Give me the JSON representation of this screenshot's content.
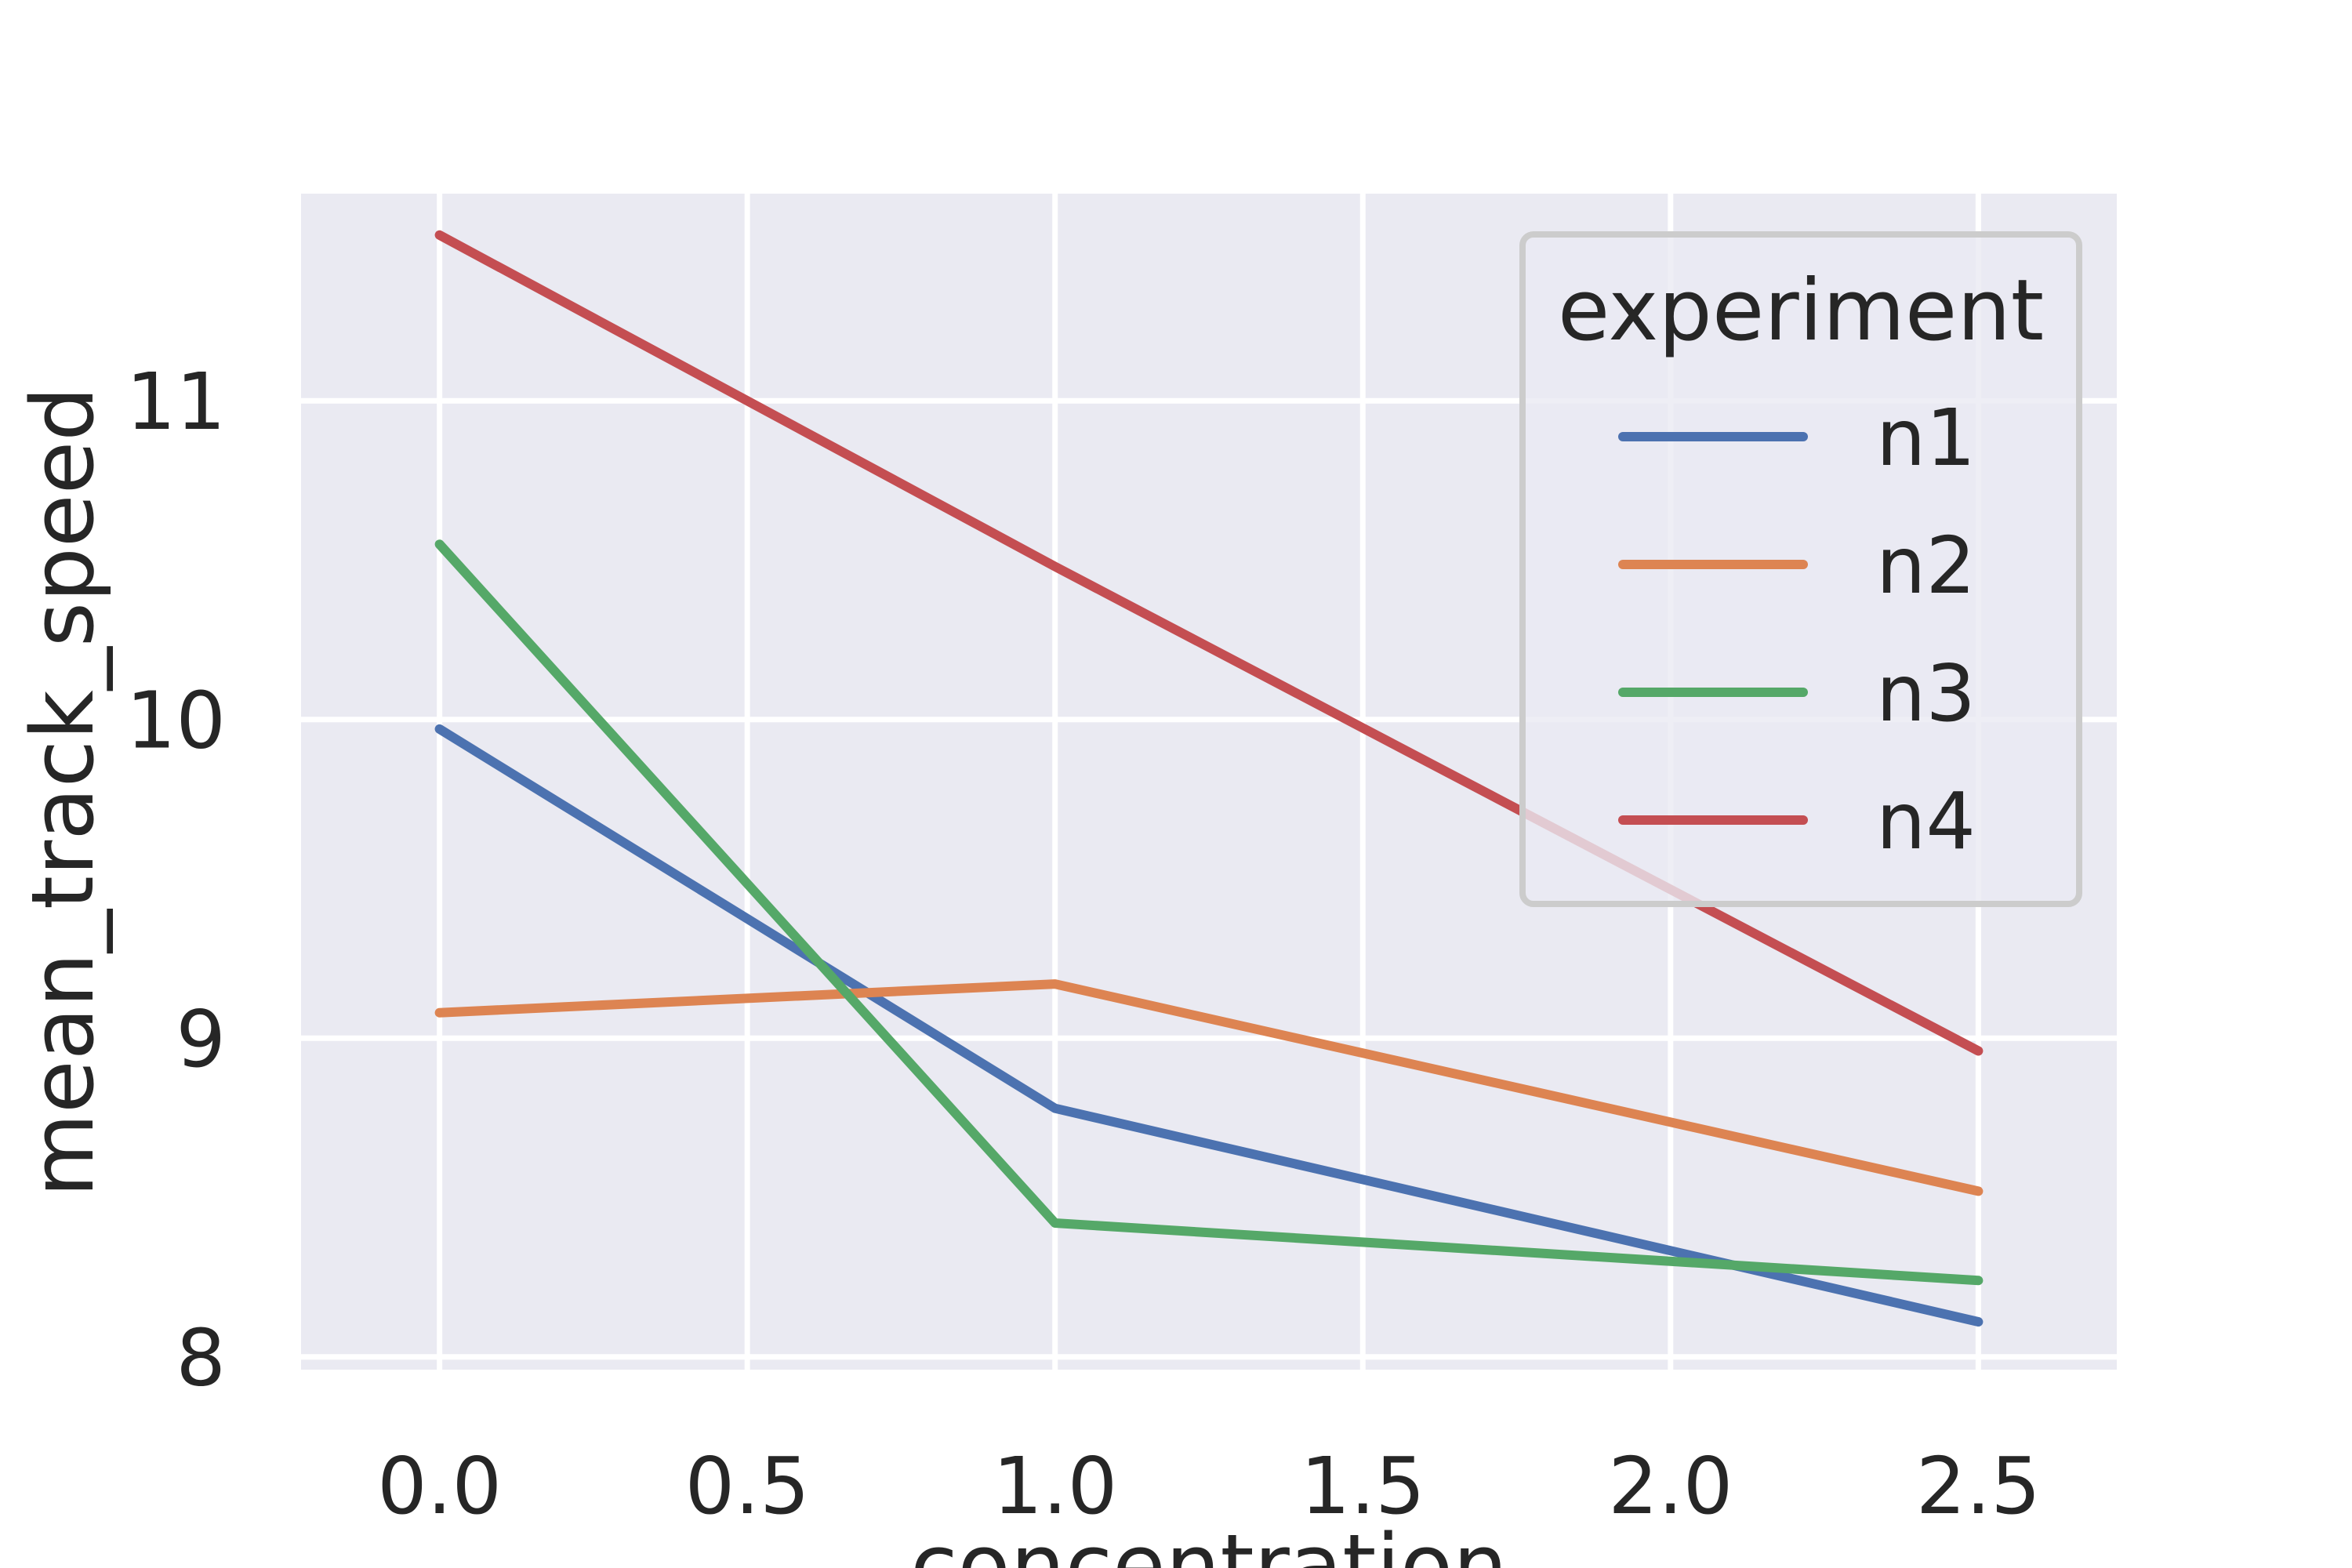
{
  "chart_data": {
    "type": "line",
    "xlabel": "concentration",
    "ylabel": "mean_track_speed",
    "x": [
      0.0,
      1.0,
      2.5
    ],
    "xticks": [
      "0.0",
      "0.5",
      "1.0",
      "1.5",
      "2.0",
      "2.5"
    ],
    "yticks": [
      "8",
      "9",
      "10",
      "11"
    ],
    "xlim": [
      -0.225,
      2.725
    ],
    "ylim": [
      7.96,
      11.65
    ],
    "grid": true,
    "legend": {
      "title": "experiment",
      "position": "top-right"
    },
    "series": [
      {
        "name": "n1",
        "color": "#4c72b0",
        "values": [
          9.97,
          8.78,
          8.11
        ]
      },
      {
        "name": "n2",
        "color": "#dd8452",
        "values": [
          9.08,
          9.17,
          8.52
        ]
      },
      {
        "name": "n3",
        "color": "#55a868",
        "values": [
          10.55,
          8.42,
          8.24
        ]
      },
      {
        "name": "n4",
        "color": "#c44e52",
        "values": [
          11.52,
          10.48,
          8.96
        ]
      }
    ],
    "colors": {
      "plot_background": "#eaeaf2",
      "grid": "#ffffff",
      "text": "#262626"
    }
  }
}
